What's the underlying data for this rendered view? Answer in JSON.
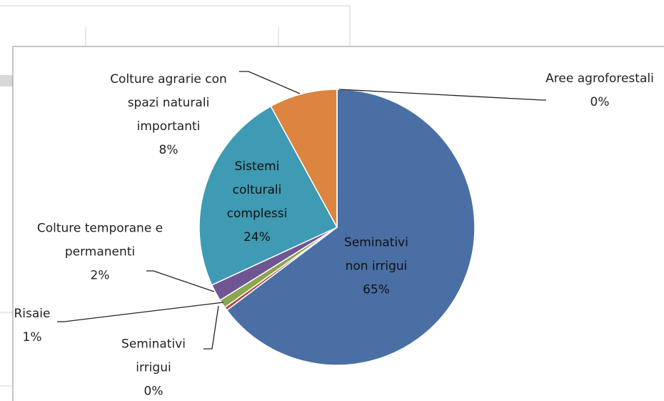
{
  "chart_data": {
    "type": "pie",
    "categories": [
      "Seminativi non irrigui",
      "Seminativi irrigui",
      "Risaie",
      "Colture temporane e permanenti",
      "Sistemi colturali complessi",
      "Colture agrarie con spazi naturali importanti",
      "Aree agroforestali"
    ],
    "values": [
      65,
      0.4,
      1,
      2,
      24,
      8,
      0
    ],
    "value_labels": [
      "65%",
      "0%",
      "1%",
      "2%",
      "24%",
      "8%",
      "0%"
    ],
    "colors": [
      "#4a6fa5",
      "#b04a45",
      "#8aa64f",
      "#6f5692",
      "#3f9ab3",
      "#db8540",
      "#7d9fd0"
    ]
  }
}
